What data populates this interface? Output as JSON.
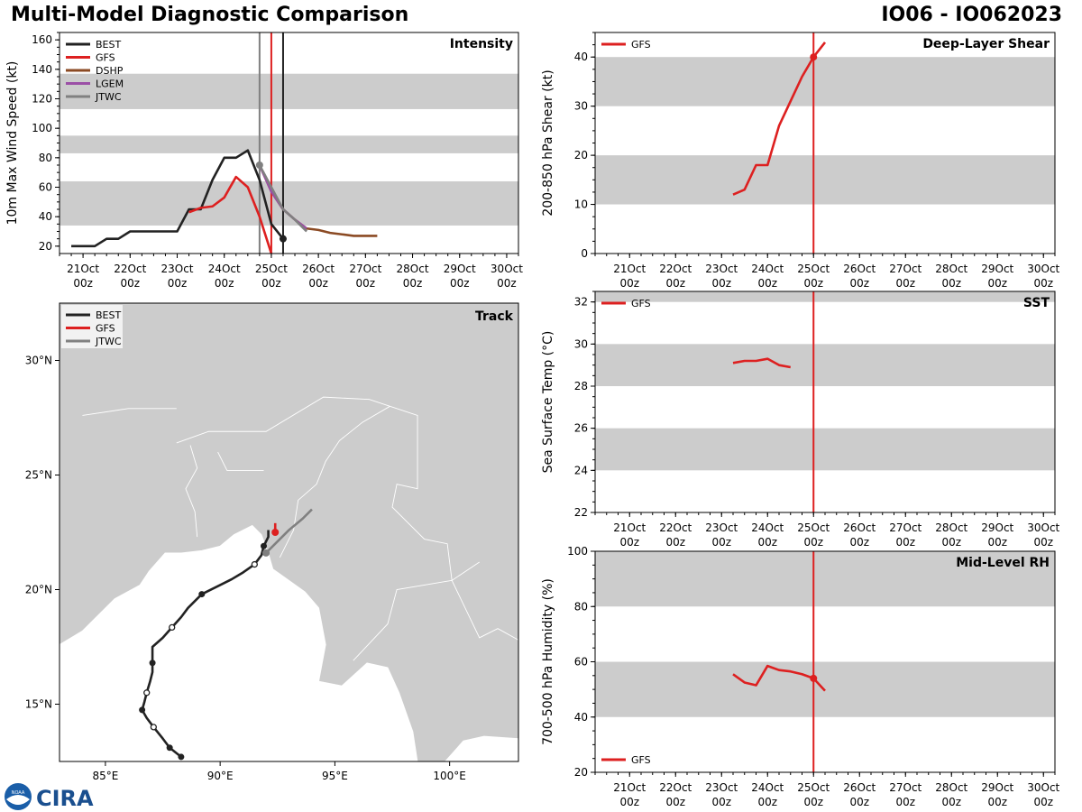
{
  "header": {
    "title_left": "Multi-Model Diagnostic Comparison",
    "title_right": "IO06 - IO062023"
  },
  "logo": {
    "noaa": "NOAA",
    "cira": "CIRA"
  },
  "colors": {
    "BEST": "#222222",
    "GFS": "#dd2020",
    "DSHP": "#8b4a23",
    "LGEM": "#9b4fa6",
    "JTWC": "#808080",
    "band": "#cccccc",
    "land": "#cccccc"
  },
  "time_ticks": [
    {
      "day": 21,
      "label1": "21Oct",
      "label2": "00z"
    },
    {
      "day": 22,
      "label1": "22Oct",
      "label2": "00z"
    },
    {
      "day": 23,
      "label1": "23Oct",
      "label2": "00z"
    },
    {
      "day": 24,
      "label1": "24Oct",
      "label2": "00z"
    },
    {
      "day": 25,
      "label1": "25Oct",
      "label2": "00z"
    },
    {
      "day": 26,
      "label1": "26Oct",
      "label2": "00z"
    },
    {
      "day": 27,
      "label1": "27Oct",
      "label2": "00z"
    },
    {
      "day": 28,
      "label1": "28Oct",
      "label2": "00z"
    },
    {
      "day": 29,
      "label1": "29Oct",
      "label2": "00z"
    },
    {
      "day": 30,
      "label1": "30Oct",
      "label2": "00z"
    }
  ],
  "chart_data": [
    {
      "id": "intensity",
      "type": "line",
      "title": "Intensity",
      "ylabel": "10m Max Wind Speed (kt)",
      "xlim": [
        20.5,
        30.25
      ],
      "ylim": [
        15,
        165
      ],
      "yticks": [
        20,
        40,
        60,
        80,
        100,
        120,
        140,
        160
      ],
      "bands": [
        [
          34,
          64
        ],
        [
          83,
          95
        ],
        [
          113,
          137
        ]
      ],
      "vlines": [
        {
          "x": 24.75,
          "color": "#808080"
        },
        {
          "x": 25.0,
          "color": "#dd2020"
        },
        {
          "x": 25.25,
          "color": "#222222"
        }
      ],
      "legend": [
        "BEST",
        "GFS",
        "DSHP",
        "LGEM",
        "JTWC"
      ],
      "series": [
        {
          "name": "BEST",
          "points": [
            [
              20.75,
              20
            ],
            [
              21.25,
              20
            ],
            [
              21.5,
              25
            ],
            [
              21.75,
              25
            ],
            [
              22.0,
              30
            ],
            [
              22.25,
              30
            ],
            [
              22.5,
              30
            ],
            [
              22.75,
              30
            ],
            [
              23.0,
              30
            ],
            [
              23.25,
              45
            ],
            [
              23.5,
              45
            ],
            [
              23.75,
              65
            ],
            [
              24.0,
              80
            ],
            [
              24.25,
              80
            ],
            [
              24.5,
              85
            ],
            [
              24.75,
              65
            ],
            [
              25.0,
              35
            ],
            [
              25.25,
              25
            ]
          ],
          "endmarker": [
            25.25,
            25
          ]
        },
        {
          "name": "GFS",
          "points": [
            [
              23.25,
              43
            ],
            [
              23.5,
              46
            ],
            [
              23.75,
              47
            ],
            [
              24.0,
              53
            ],
            [
              24.25,
              67
            ],
            [
              24.5,
              60
            ],
            [
              24.75,
              40
            ],
            [
              25.0,
              15
            ]
          ]
        },
        {
          "name": "DSHP",
          "points": [
            [
              24.75,
              75
            ],
            [
              25.0,
              57
            ],
            [
              25.25,
              45
            ],
            [
              25.5,
              38
            ],
            [
              25.75,
              32
            ],
            [
              26.0,
              31
            ],
            [
              26.25,
              29
            ],
            [
              26.5,
              28
            ],
            [
              26.75,
              27
            ],
            [
              27.0,
              27
            ],
            [
              27.25,
              27
            ]
          ]
        },
        {
          "name": "LGEM",
          "points": [
            [
              24.75,
              75
            ],
            [
              25.0,
              57
            ],
            [
              25.25,
              45
            ],
            [
              25.5,
              38
            ],
            [
              25.75,
              32
            ]
          ]
        },
        {
          "name": "JTWC",
          "points": [
            [
              24.75,
              75
            ],
            [
              25.0,
              60
            ],
            [
              25.25,
              45
            ],
            [
              25.5,
              38
            ],
            [
              25.75,
              30
            ]
          ],
          "startmarker": [
            24.75,
            75
          ]
        }
      ]
    },
    {
      "id": "shear",
      "type": "line",
      "title": "Deep-Layer Shear",
      "ylabel": "200-850 hPa Shear (kt)",
      "xlim": [
        20.25,
        30.25
      ],
      "ylim": [
        0,
        45
      ],
      "yticks": [
        0,
        10,
        20,
        30,
        40
      ],
      "bands": [
        [
          10,
          20
        ],
        [
          30,
          40
        ]
      ],
      "vlines": [
        {
          "x": 25.0,
          "color": "#dd2020"
        }
      ],
      "legend": [
        "GFS"
      ],
      "series": [
        {
          "name": "GFS",
          "points": [
            [
              23.25,
              12
            ],
            [
              23.5,
              13
            ],
            [
              23.75,
              18
            ],
            [
              24.0,
              18
            ],
            [
              24.25,
              26
            ],
            [
              24.5,
              31
            ],
            [
              24.75,
              36
            ],
            [
              25.0,
              40
            ],
            [
              25.25,
              43
            ]
          ],
          "marker": [
            25.0,
            40
          ]
        }
      ]
    },
    {
      "id": "sst",
      "type": "line",
      "title": "SST",
      "ylabel": "Sea Surface Temp (°C)",
      "xlim": [
        20.25,
        30.25
      ],
      "ylim": [
        22,
        32.5
      ],
      "yticks": [
        22,
        24,
        26,
        28,
        30,
        32
      ],
      "bands": [
        [
          24,
          26
        ],
        [
          28,
          30
        ],
        [
          32,
          32.5
        ]
      ],
      "vlines": [
        {
          "x": 25.0,
          "color": "#dd2020"
        }
      ],
      "legend": [
        "GFS"
      ],
      "series": [
        {
          "name": "GFS",
          "points": [
            [
              23.25,
              29.1
            ],
            [
              23.5,
              29.2
            ],
            [
              23.75,
              29.2
            ],
            [
              24.0,
              29.3
            ],
            [
              24.25,
              29.0
            ],
            [
              24.5,
              28.9
            ]
          ]
        }
      ]
    },
    {
      "id": "rh",
      "type": "line",
      "title": "Mid-Level RH",
      "ylabel": "700-500 hPa Humidity (%)",
      "xlim": [
        20.25,
        30.25
      ],
      "ylim": [
        20,
        100
      ],
      "yticks": [
        20,
        40,
        60,
        80,
        100
      ],
      "bands": [
        [
          40,
          60
        ],
        [
          80,
          100
        ]
      ],
      "vlines": [
        {
          "x": 25.0,
          "color": "#dd2020"
        }
      ],
      "legend": [
        "GFS"
      ],
      "series": [
        {
          "name": "GFS",
          "points": [
            [
              23.25,
              55.5
            ],
            [
              23.5,
              52.5
            ],
            [
              23.75,
              51.5
            ],
            [
              24.0,
              58.5
            ],
            [
              24.25,
              57
            ],
            [
              24.5,
              56.5
            ],
            [
              24.75,
              55.5
            ],
            [
              25.0,
              54
            ],
            [
              25.25,
              49.5
            ]
          ],
          "marker": [
            25.0,
            54
          ]
        }
      ]
    },
    {
      "id": "track",
      "type": "scatter",
      "title": "Track",
      "xlim": [
        83,
        103
      ],
      "ylim": [
        12.5,
        32.5
      ],
      "xticks": [
        85,
        90,
        95,
        100
      ],
      "xticklabels": [
        "85°E",
        "90°E",
        "95°E",
        "100°E"
      ],
      "yticks": [
        15,
        20,
        25,
        30
      ],
      "yticklabels": [
        "15°N",
        "20°N",
        "25°N",
        "30°N"
      ],
      "legend": [
        "BEST",
        "GFS",
        "JTWC"
      ],
      "series": [
        {
          "name": "BEST",
          "points": [
            [
              88.3,
              12.7
            ],
            [
              87.8,
              13.1
            ],
            [
              87.5,
              13.5
            ],
            [
              87.1,
              14.0
            ],
            [
              86.8,
              14.4
            ],
            [
              86.6,
              14.75
            ],
            [
              86.7,
              15.1
            ],
            [
              86.8,
              15.5
            ],
            [
              86.95,
              16.0
            ],
            [
              87.05,
              16.4
            ],
            [
              87.05,
              16.8
            ],
            [
              87.05,
              17.5
            ],
            [
              87.5,
              17.9
            ],
            [
              87.9,
              18.35
            ],
            [
              88.3,
              18.8
            ],
            [
              88.6,
              19.2
            ],
            [
              89.2,
              19.8
            ],
            [
              90.0,
              20.2
            ],
            [
              90.5,
              20.45
            ],
            [
              91.0,
              20.75
            ],
            [
              91.5,
              21.1
            ],
            [
              91.8,
              21.5
            ],
            [
              91.9,
              21.9
            ],
            [
              92.1,
              22.3
            ],
            [
              92.1,
              22.6
            ]
          ],
          "filled": [
            [
              88.3,
              12.7
            ],
            [
              87.8,
              13.1
            ],
            [
              86.6,
              14.75
            ],
            [
              87.05,
              16.8
            ],
            [
              89.2,
              19.8
            ],
            [
              91.9,
              21.9
            ]
          ],
          "open": [
            [
              87.1,
              14.0
            ],
            [
              86.8,
              15.5
            ],
            [
              87.9,
              18.35
            ],
            [
              91.5,
              21.1
            ]
          ]
        },
        {
          "name": "GFS",
          "points": [
            [
              92.4,
              22.5
            ],
            [
              92.4,
              22.6
            ],
            [
              92.4,
              22.9
            ]
          ],
          "marker": [
            92.4,
            22.5
          ]
        },
        {
          "name": "JTWC",
          "points": [
            [
              92.0,
              21.6
            ],
            [
              92.4,
              22.0
            ],
            [
              93.0,
              22.6
            ],
            [
              93.6,
              23.1
            ],
            [
              94.0,
              23.5
            ]
          ],
          "marker": [
            92.0,
            21.6
          ]
        }
      ]
    }
  ]
}
